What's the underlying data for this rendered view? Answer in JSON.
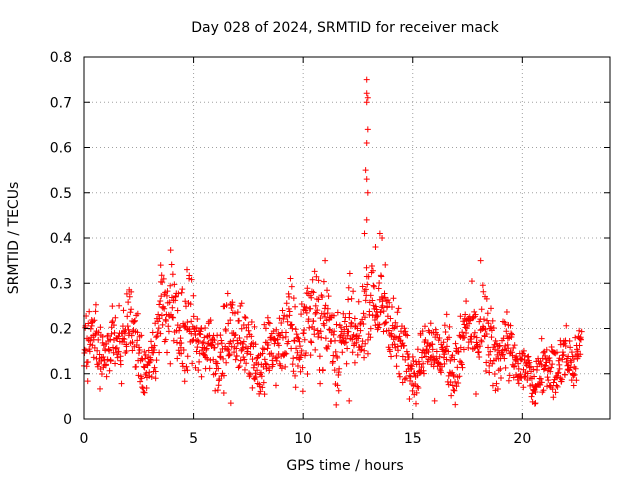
{
  "chart_data": {
    "type": "scatter",
    "title": "Day 028 of 2024, SRMTID for receiver mack",
    "xlabel": "GPS time / hours",
    "ylabel": "SRMTID / TECUs",
    "xlim": [
      0,
      24
    ],
    "ylim": [
      0,
      0.8
    ],
    "x_ticks": [
      0,
      5,
      10,
      15,
      20
    ],
    "x_tick_labels": [
      "0",
      "5",
      "10",
      "15",
      "20"
    ],
    "y_ticks": [
      0,
      0.1,
      0.2,
      0.3,
      0.4,
      0.5,
      0.6,
      0.7,
      0.8
    ],
    "y_tick_labels": [
      "0",
      "0.1",
      "0.2",
      "0.3",
      "0.4",
      "0.5",
      "0.6",
      "0.7",
      "0.8"
    ],
    "grid": true,
    "marker": "+",
    "series": [
      {
        "name": "SRMTID",
        "color": "#ff0000",
        "note": "Dense scatter of ~1700 points; representative data envelope by time",
        "x_range": [
          0,
          22.7
        ],
        "profile": [
          {
            "x": 0.0,
            "center": 0.15,
            "spread": 0.05
          },
          {
            "x": 1.0,
            "center": 0.16,
            "spread": 0.05
          },
          {
            "x": 2.0,
            "center": 0.19,
            "spread": 0.06
          },
          {
            "x": 3.0,
            "center": 0.12,
            "spread": 0.04
          },
          {
            "x": 3.5,
            "center": 0.22,
            "spread": 0.08
          },
          {
            "x": 4.5,
            "center": 0.22,
            "spread": 0.08
          },
          {
            "x": 5.5,
            "center": 0.14,
            "spread": 0.05
          },
          {
            "x": 6.5,
            "center": 0.18,
            "spread": 0.06
          },
          {
            "x": 7.5,
            "center": 0.16,
            "spread": 0.06
          },
          {
            "x": 8.5,
            "center": 0.13,
            "spread": 0.05
          },
          {
            "x": 9.5,
            "center": 0.19,
            "spread": 0.07
          },
          {
            "x": 10.5,
            "center": 0.21,
            "spread": 0.07
          },
          {
            "x": 11.5,
            "center": 0.2,
            "spread": 0.08
          },
          {
            "x": 12.5,
            "center": 0.16,
            "spread": 0.05
          },
          {
            "x": 13.2,
            "center": 0.3,
            "spread": 0.08
          },
          {
            "x": 14.0,
            "center": 0.19,
            "spread": 0.06
          },
          {
            "x": 15.0,
            "center": 0.13,
            "spread": 0.04
          },
          {
            "x": 16.0,
            "center": 0.15,
            "spread": 0.05
          },
          {
            "x": 17.0,
            "center": 0.14,
            "spread": 0.05
          },
          {
            "x": 18.2,
            "center": 0.2,
            "spread": 0.07
          },
          {
            "x": 19.0,
            "center": 0.14,
            "spread": 0.05
          },
          {
            "x": 20.0,
            "center": 0.12,
            "spread": 0.05
          },
          {
            "x": 21.0,
            "center": 0.09,
            "spread": 0.04
          },
          {
            "x": 22.0,
            "center": 0.14,
            "spread": 0.05
          },
          {
            "x": 22.7,
            "center": 0.15,
            "spread": 0.04
          }
        ],
        "notable_points": [
          {
            "x": 12.9,
            "y": 0.75
          },
          {
            "x": 12.9,
            "y": 0.72
          },
          {
            "x": 12.95,
            "y": 0.71
          },
          {
            "x": 12.9,
            "y": 0.7
          },
          {
            "x": 12.95,
            "y": 0.64
          },
          {
            "x": 12.9,
            "y": 0.61
          },
          {
            "x": 12.85,
            "y": 0.55
          },
          {
            "x": 12.9,
            "y": 0.53
          },
          {
            "x": 12.95,
            "y": 0.5
          },
          {
            "x": 12.9,
            "y": 0.44
          },
          {
            "x": 13.5,
            "y": 0.41
          },
          {
            "x": 12.8,
            "y": 0.41
          },
          {
            "x": 13.6,
            "y": 0.4
          },
          {
            "x": 13.3,
            "y": 0.38
          },
          {
            "x": 3.5,
            "y": 0.34
          },
          {
            "x": 4.7,
            "y": 0.33
          },
          {
            "x": 18.1,
            "y": 0.35
          },
          {
            "x": 11.0,
            "y": 0.35
          },
          {
            "x": 6.7,
            "y": 0.035
          },
          {
            "x": 20.6,
            "y": 0.035
          },
          {
            "x": 12.1,
            "y": 0.04
          },
          {
            "x": 16.0,
            "y": 0.04
          }
        ]
      }
    ]
  }
}
